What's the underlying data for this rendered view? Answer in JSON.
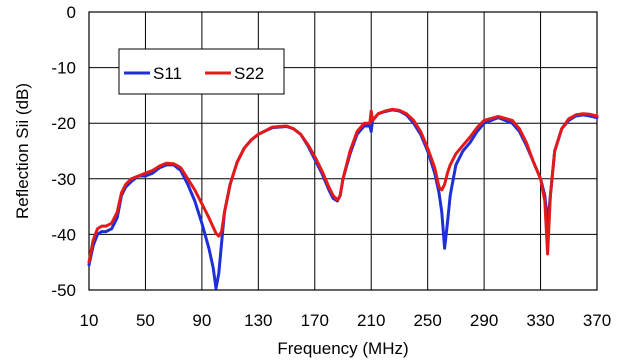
{
  "chart_data": {
    "type": "line",
    "title": "",
    "xlabel": "Frequency (MHz)",
    "ylabel": "Reflection Sii (dB)",
    "xlim": [
      10,
      370
    ],
    "ylim": [
      -50,
      0
    ],
    "x_ticks": [
      10,
      50,
      90,
      130,
      170,
      210,
      250,
      290,
      330,
      370
    ],
    "x_tick_labels": [
      "10",
      "50",
      "90",
      "130",
      "170",
      "210",
      "250",
      "290",
      "330",
      "370"
    ],
    "y_ticks": [
      0,
      -10,
      -20,
      -30,
      -40,
      -50
    ],
    "y_tick_labels": [
      "0",
      "-10",
      "-20",
      "-30",
      "-40",
      "-50"
    ],
    "grid": true,
    "legend_position": "top-left",
    "series": [
      {
        "name": "S11",
        "color": "#1f2fd8",
        "x": [
          10,
          13,
          16,
          19,
          22,
          26,
          30,
          33,
          36,
          40,
          45,
          50,
          55,
          60,
          65,
          70,
          75,
          80,
          85,
          90,
          95,
          98,
          100,
          102,
          104,
          106,
          110,
          115,
          120,
          125,
          130,
          140,
          150,
          155,
          160,
          165,
          170,
          175,
          180,
          183,
          186,
          188,
          190,
          195,
          200,
          205,
          209,
          210,
          211,
          215,
          220,
          225,
          230,
          235,
          240,
          245,
          250,
          255,
          258,
          260,
          262,
          264,
          266,
          270,
          275,
          280,
          285,
          290,
          300,
          310,
          315,
          320,
          325,
          330,
          333,
          335,
          337,
          340,
          345,
          350,
          355,
          360,
          365,
          370
        ],
        "y": [
          -45.5,
          -42,
          -40,
          -39.5,
          -39.5,
          -39,
          -37,
          -33,
          -31.5,
          -30.5,
          -29.5,
          -29.5,
          -29,
          -28,
          -27.5,
          -27.5,
          -28.5,
          -31,
          -34,
          -38,
          -42.5,
          -46,
          -49.7,
          -47,
          -41.5,
          -36,
          -31,
          -27,
          -24.5,
          -23,
          -22,
          -20.8,
          -20.6,
          -21,
          -22,
          -24,
          -26.5,
          -29,
          -32,
          -33.5,
          -34,
          -33,
          -30,
          -25.5,
          -22,
          -20.5,
          -20.5,
          -21.5,
          -19.5,
          -18.3,
          -17.9,
          -17.6,
          -17.8,
          -18.5,
          -20,
          -22,
          -25,
          -29,
          -32.5,
          -36,
          -42.5,
          -38,
          -33,
          -27.5,
          -25,
          -23.5,
          -21.5,
          -20,
          -19,
          -20,
          -21.5,
          -24,
          -27,
          -30,
          -33,
          -38,
          -33,
          -25,
          -21,
          -19.5,
          -18.7,
          -18.5,
          -18.7,
          -19
        ]
      },
      {
        "name": "S22",
        "color": "#e41a1a",
        "x": [
          10,
          13,
          16,
          19,
          22,
          26,
          30,
          33,
          36,
          40,
          45,
          50,
          55,
          60,
          65,
          70,
          75,
          80,
          85,
          90,
          95,
          98,
          100,
          102,
          104,
          106,
          110,
          115,
          120,
          125,
          130,
          140,
          150,
          155,
          160,
          165,
          170,
          175,
          180,
          183,
          186,
          188,
          190,
          195,
          200,
          205,
          209,
          210,
          211,
          215,
          220,
          225,
          230,
          235,
          240,
          245,
          250,
          255,
          258,
          260,
          262,
          264,
          266,
          270,
          275,
          280,
          285,
          290,
          300,
          310,
          315,
          320,
          325,
          330,
          333,
          335,
          337,
          340,
          345,
          350,
          355,
          360,
          365,
          370
        ],
        "y": [
          -45,
          -41,
          -39,
          -38.5,
          -38.5,
          -38,
          -36,
          -32.5,
          -31,
          -30,
          -29.5,
          -29,
          -28.5,
          -27.7,
          -27.2,
          -27.3,
          -28,
          -30,
          -32,
          -34.5,
          -37,
          -38.7,
          -39.8,
          -40.3,
          -39.5,
          -36,
          -31,
          -27,
          -24.5,
          -23,
          -22,
          -20.7,
          -20.5,
          -21,
          -22,
          -23.8,
          -26,
          -28.5,
          -31.5,
          -33,
          -33.8,
          -33,
          -30,
          -25,
          -21.5,
          -20,
          -20,
          -17.8,
          -19.5,
          -18.3,
          -17.8,
          -17.5,
          -17.7,
          -18.3,
          -19.5,
          -21.5,
          -24.5,
          -28,
          -31.5,
          -32,
          -31,
          -29,
          -27.5,
          -25.5,
          -24,
          -22.5,
          -20.8,
          -19.5,
          -18.8,
          -19.5,
          -21,
          -23.5,
          -27,
          -30,
          -34,
          -43.5,
          -33,
          -25,
          -21,
          -19.2,
          -18.5,
          -18.3,
          -18.4,
          -18.7
        ]
      }
    ]
  }
}
